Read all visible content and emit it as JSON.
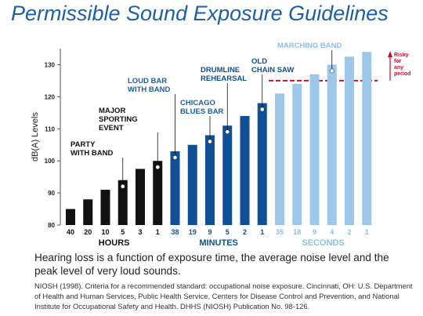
{
  "title": "Permissible Sound Exposure Guidelines",
  "caption": "Hearing loss is a function of exposure time, the average noise level and the peak level of very loud sounds.",
  "citation": "NIOSH (1998). Criteria for a recommended standard: occupational noise exposure. Cincinnati, OH: U.S. Department of Health and Human Services, Public Health Service, Centers for Disease Control and Prevention, and National Institute for Occupational Safety and Health.  DHHS (NIOSH) Publication No. 98-126.",
  "chart_data": {
    "type": "bar",
    "ylabel": "dB(A) Levels",
    "ylim": [
      80,
      135
    ],
    "yticks": [
      80,
      90,
      100,
      110,
      120,
      130
    ],
    "grid": false,
    "categories": [
      "40",
      "20",
      "10",
      "5",
      "3",
      "1",
      "38",
      "19",
      "9",
      "5",
      "2",
      "1",
      "35",
      "18",
      "9",
      "4",
      "2",
      "1"
    ],
    "values": [
      85,
      88,
      91,
      94,
      97.5,
      100,
      103,
      105,
      108,
      111,
      114,
      118,
      121,
      124,
      127,
      130,
      132.5,
      134
    ],
    "groups": [
      {
        "label": "HOURS",
        "start": 0,
        "end": 5,
        "color": "#111111",
        "text_color": "#111111"
      },
      {
        "label": "MINUTES",
        "start": 6,
        "end": 11,
        "color": "#0e4f95",
        "text_color": "#0e4f95"
      },
      {
        "label": "SECONDS",
        "start": 12,
        "end": 17,
        "color": "#9ec8ea",
        "text_color": "#8fbde4"
      }
    ],
    "annotations": [
      {
        "label": "PARTY\nWITH BAND",
        "bar": 3,
        "color": "#111111"
      },
      {
        "label": "MAJOR\nSPORTING\nEVENT",
        "bar": 5,
        "color": "#111111"
      },
      {
        "label": "LOUD BAR\nWITH BAND",
        "bar": 6,
        "color": "#1b5fa5"
      },
      {
        "label": "CHICAGO\nBLUES BAR",
        "bar": 8,
        "color": "#1b5fa5"
      },
      {
        "label": "DRUMLINE\nREHEARSAL",
        "bar": 9,
        "color": "#0e4f95"
      },
      {
        "label": "OLD\nCHAIN SAW",
        "bar": 11,
        "color": "#0e4f95"
      },
      {
        "label": "MARCHING BAND",
        "bar": 15,
        "color": "#8fbde4"
      }
    ],
    "risk_threshold": {
      "value": 125,
      "label": "Risky\nfor\nany\nperiod",
      "color": "#c8102e"
    }
  }
}
